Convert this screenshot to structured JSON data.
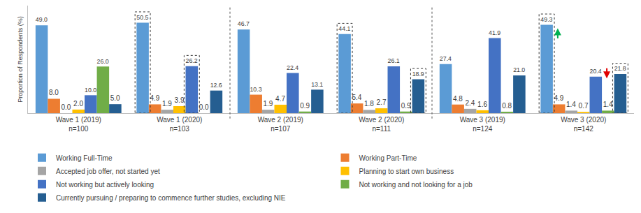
{
  "chart_data": {
    "type": "bar",
    "categories": [
      "Wave 1 (2019)",
      "Wave 1 (2020)",
      "Wave 2 (2019)",
      "Wave 2 (2020)",
      "Wave 3 (2019)",
      "Wave 3 (2020)"
    ],
    "sample_sizes": [
      "n=100",
      "n=103",
      "n=107",
      "n=111",
      "n=124",
      "n=142"
    ],
    "y_label": "Proportion of Respondents (%)",
    "ylim": [
      0,
      60
    ],
    "grid": false,
    "tick_labels": "x",
    "legend": "bottom",
    "data_labels": true,
    "series": [
      {
        "name": "Working Full-Time",
        "color": "#5B9BD5",
        "values": [
          49.0,
          50.5,
          46.7,
          44.1,
          27.4,
          49.3
        ],
        "value_labels": [
          "49.0",
          "50.5",
          "46.7",
          "44.1",
          "27.4",
          "49.3"
        ]
      },
      {
        "name": "Working Part-Time",
        "color": "#ED7D31",
        "values": [
          8.0,
          4.9,
          10.3,
          5.4,
          4.8,
          4.9
        ],
        "value_labels": [
          "8.0",
          "4.9",
          "10.3",
          "5.4",
          "4.8",
          "4.9"
        ]
      },
      {
        "name": "Accepted job offer, not started yet",
        "color": "#A5A5A5",
        "values": [
          0.0,
          1.9,
          1.9,
          1.8,
          2.4,
          1.4
        ],
        "value_labels": [
          "0.0",
          "1.9",
          "1.9",
          "1.8",
          "2.4",
          "1.4"
        ]
      },
      {
        "name": "Planning to start own business",
        "color": "#FFC000",
        "values": [
          2.0,
          3.9,
          4.7,
          2.7,
          1.6,
          0.7
        ],
        "value_labels": [
          "2.0",
          "3.9",
          "4.7",
          "2.7",
          "1.6",
          "0.7"
        ]
      },
      {
        "name": "Not working but actively looking",
        "color": "#4472C4",
        "values": [
          10.0,
          26.2,
          22.4,
          26.1,
          41.9,
          20.4
        ],
        "value_labels": [
          "10.0",
          "26.2",
          "22.4",
          "26.1",
          "41.9",
          "20.4"
        ]
      },
      {
        "name": "Not working and not looking for a job",
        "color": "#70AD47",
        "values": [
          26.0,
          0.0,
          0.9,
          0.9,
          0.8,
          1.4
        ],
        "value_labels": [
          "26.0",
          "0.0",
          "0.9",
          "0.9",
          "0.8",
          "1.4"
        ]
      },
      {
        "name": "Currently pursuing / preparing to commence further studies, excluding NIE",
        "color": "#255E91",
        "values": [
          5.0,
          12.6,
          13.1,
          18.9,
          21.0,
          21.8
        ],
        "value_labels": [
          "5.0",
          "12.6",
          "13.1",
          "18.9",
          "21.0",
          "21.8"
        ]
      }
    ]
  }
}
